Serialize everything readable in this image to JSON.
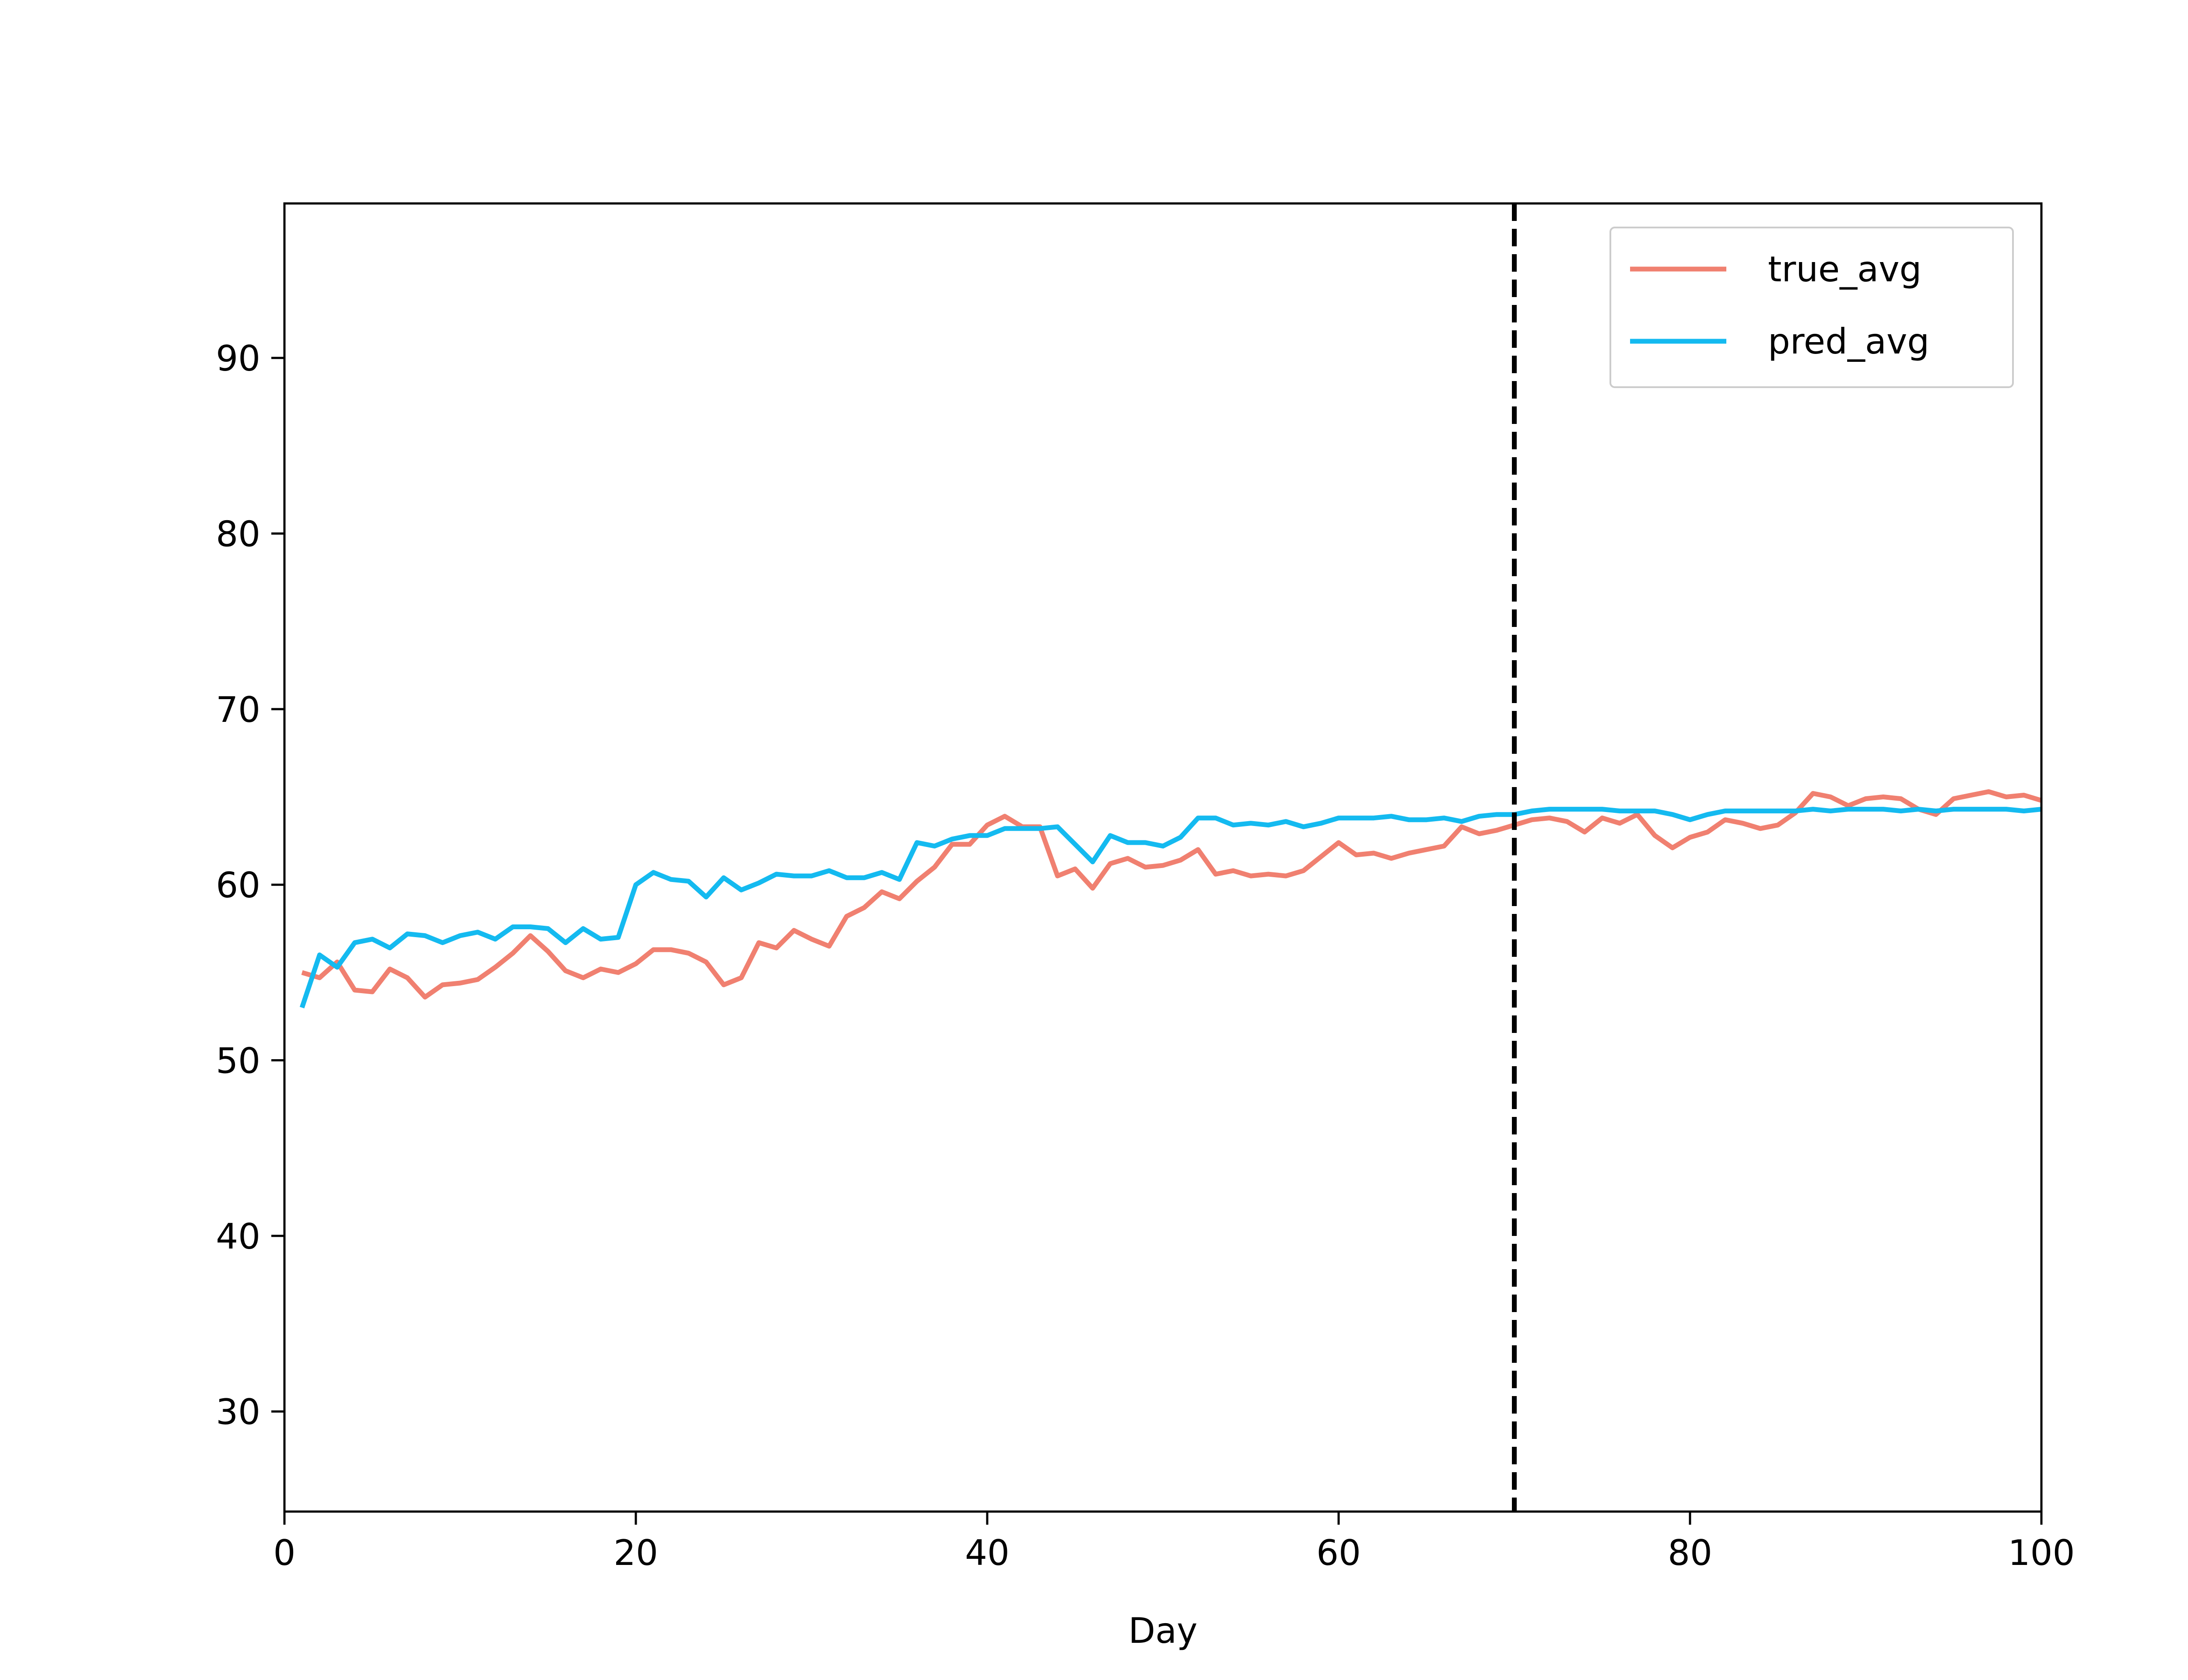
{
  "chart_data": {
    "type": "line",
    "xlabel": "Day",
    "ylabel": "",
    "xlim": [
      0,
      100
    ],
    "ylim": [
      24.3,
      98.8
    ],
    "xticks": [
      0,
      20,
      40,
      60,
      80,
      100
    ],
    "yticks": [
      30,
      40,
      50,
      60,
      70,
      80,
      90
    ],
    "grid": false,
    "legend_position": "top-right",
    "vline": {
      "x": 70,
      "style": "dashed",
      "color": "#000000"
    },
    "series": [
      {
        "name": "true_avg",
        "color": "#F08070",
        "x": [
          1,
          2,
          3,
          4,
          5,
          6,
          7,
          8,
          9,
          10,
          11,
          12,
          13,
          14,
          15,
          16,
          17,
          18,
          19,
          20,
          21,
          22,
          23,
          24,
          25,
          26,
          27,
          28,
          29,
          30,
          31,
          32,
          33,
          34,
          35,
          36,
          37,
          38,
          39,
          40,
          41,
          42,
          43,
          44,
          45,
          46,
          47,
          48,
          49,
          50,
          51,
          52,
          53,
          54,
          55,
          56,
          57,
          58,
          59,
          60,
          61,
          62,
          63,
          64,
          65,
          66,
          67,
          68,
          69,
          70,
          71,
          72,
          73,
          74,
          75,
          76,
          77,
          78,
          79,
          80,
          81,
          82,
          83,
          84,
          85,
          86,
          87,
          88,
          89,
          90,
          91,
          92,
          93,
          94,
          95,
          96,
          97,
          98,
          99,
          100
        ],
        "values": [
          55.0,
          54.7,
          55.6,
          54.0,
          53.9,
          55.2,
          54.7,
          53.6,
          54.3,
          54.4,
          54.6,
          55.3,
          56.1,
          57.1,
          56.2,
          55.1,
          54.7,
          55.2,
          55.0,
          55.5,
          56.3,
          56.3,
          56.1,
          55.6,
          54.3,
          54.7,
          56.7,
          56.4,
          57.4,
          56.9,
          56.5,
          58.2,
          58.7,
          59.6,
          59.2,
          60.2,
          61.0,
          62.3,
          62.3,
          63.4,
          63.9,
          63.3,
          63.3,
          60.5,
          60.9,
          59.8,
          61.2,
          61.5,
          61.0,
          61.1,
          61.4,
          62.0,
          60.6,
          60.8,
          60.5,
          60.6,
          60.5,
          60.8,
          61.6,
          62.4,
          61.7,
          61.8,
          61.5,
          61.8,
          62.0,
          62.2,
          63.3,
          62.9,
          63.1,
          63.4,
          63.7,
          63.8,
          63.6,
          63.0,
          63.8,
          63.5,
          64.0,
          62.8,
          62.1,
          62.7,
          63.0,
          63.7,
          63.5,
          63.2,
          63.4,
          64.1,
          65.2,
          65.0,
          64.5,
          64.9,
          65.0,
          64.9,
          64.3,
          64.0,
          64.9,
          65.1,
          65.3,
          65.0,
          65.1,
          64.8
        ]
      },
      {
        "name": "pred_avg",
        "color": "#14BAF0",
        "x": [
          1,
          2,
          3,
          4,
          5,
          6,
          7,
          8,
          9,
          10,
          11,
          12,
          13,
          14,
          15,
          16,
          17,
          18,
          19,
          20,
          21,
          22,
          23,
          24,
          25,
          26,
          27,
          28,
          29,
          30,
          31,
          32,
          33,
          34,
          35,
          36,
          37,
          38,
          39,
          40,
          41,
          42,
          43,
          44,
          45,
          46,
          47,
          48,
          49,
          50,
          51,
          52,
          53,
          54,
          55,
          56,
          57,
          58,
          59,
          60,
          61,
          62,
          63,
          64,
          65,
          66,
          67,
          68,
          69,
          70,
          71,
          72,
          73,
          74,
          75,
          76,
          77,
          78,
          79,
          80,
          81,
          82,
          83,
          84,
          85,
          86,
          87,
          88,
          89,
          90,
          91,
          92,
          93,
          94,
          95,
          96,
          97,
          98,
          99,
          100
        ],
        "values": [
          53.0,
          56.0,
          55.3,
          56.7,
          56.9,
          56.4,
          57.2,
          57.1,
          56.7,
          57.1,
          57.3,
          56.9,
          57.6,
          57.6,
          57.5,
          56.7,
          57.5,
          56.9,
          57.0,
          60.0,
          60.7,
          60.3,
          60.2,
          59.3,
          60.4,
          59.7,
          60.1,
          60.6,
          60.5,
          60.5,
          60.8,
          60.4,
          60.4,
          60.7,
          60.3,
          62.4,
          62.2,
          62.6,
          62.8,
          62.8,
          63.2,
          63.2,
          63.2,
          63.3,
          62.3,
          61.3,
          62.8,
          62.4,
          62.4,
          62.2,
          62.7,
          63.8,
          63.8,
          63.4,
          63.5,
          63.4,
          63.6,
          63.3,
          63.5,
          63.8,
          63.8,
          63.8,
          63.9,
          63.7,
          63.7,
          63.8,
          63.6,
          63.9,
          64.0,
          64.0,
          64.2,
          64.3,
          64.3,
          64.3,
          64.3,
          64.2,
          64.2,
          64.2,
          64.0,
          63.7,
          64.0,
          64.2,
          64.2,
          64.2,
          64.2,
          64.2,
          64.3,
          64.2,
          64.3,
          64.3,
          64.3,
          64.2,
          64.3,
          64.2,
          64.3,
          64.3,
          64.3,
          64.3,
          64.2,
          64.3
        ]
      }
    ]
  }
}
